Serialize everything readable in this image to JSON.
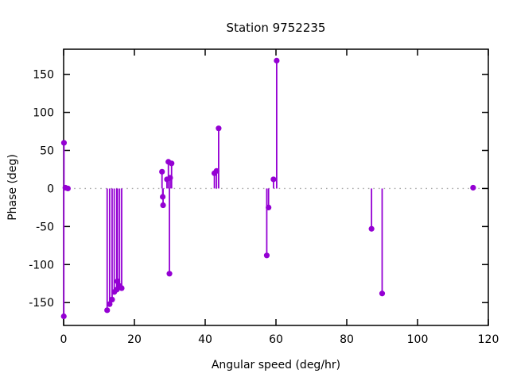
{
  "title": "Station 9752235",
  "colors": {
    "series": "#9400d3",
    "zero_line": "#a8a8a8",
    "border": "#000000",
    "text": "#000000",
    "background": "#ffffff"
  },
  "chart_data": {
    "type": "scatter",
    "style": "impulses-with-points",
    "title": "Station 9752235",
    "xlabel": "Angular speed (deg/hr)",
    "ylabel": "Phase (deg)",
    "xlim": [
      0,
      120
    ],
    "ylim": [
      -180,
      183
    ],
    "xticks": [
      0,
      20,
      40,
      60,
      80,
      100,
      120
    ],
    "yticks": [
      -150,
      -100,
      -50,
      0,
      50,
      100,
      150
    ],
    "grid": false,
    "zero_line": true,
    "legend": "none",
    "points": [
      [
        0.1,
        60
      ],
      [
        0.5,
        1
      ],
      [
        1.2,
        0
      ],
      [
        0.05,
        -168
      ],
      [
        12.3,
        -160
      ],
      [
        13.0,
        -152
      ],
      [
        13.7,
        -146
      ],
      [
        14.3,
        -136
      ],
      [
        15.0,
        -133
      ],
      [
        15.2,
        -122
      ],
      [
        15.8,
        -128
      ],
      [
        16.4,
        -131
      ],
      [
        27.8,
        22
      ],
      [
        28.0,
        -11
      ],
      [
        28.1,
        -22
      ],
      [
        29.2,
        12
      ],
      [
        29.6,
        35
      ],
      [
        30.1,
        14
      ],
      [
        30.5,
        33
      ],
      [
        29.9,
        -112
      ],
      [
        42.6,
        20
      ],
      [
        43.2,
        23
      ],
      [
        43.8,
        79
      ],
      [
        57.4,
        -88
      ],
      [
        57.9,
        -25
      ],
      [
        59.3,
        12
      ],
      [
        60.2,
        168
      ],
      [
        87.0,
        -53
      ],
      [
        90.0,
        -138
      ],
      [
        115.7,
        1
      ]
    ]
  }
}
